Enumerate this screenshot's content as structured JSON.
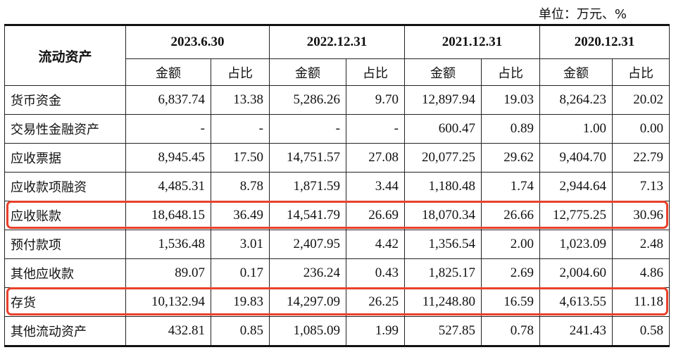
{
  "unit_label": "单位：万元、%",
  "header": {
    "corner": "流动资产",
    "periods": [
      "2023.6.30",
      "2022.12.31",
      "2021.12.31",
      "2020.12.31"
    ],
    "sub_amount": "金额",
    "sub_ratio": "占比"
  },
  "rows": [
    {
      "label": "货币资金",
      "cells": [
        "6,837.74",
        "13.38",
        "5,286.26",
        "9.70",
        "12,897.94",
        "19.03",
        "8,264.23",
        "20.02"
      ]
    },
    {
      "label": "交易性金融资产",
      "cells": [
        "-",
        "-",
        "-",
        "-",
        "600.47",
        "0.89",
        "1.00",
        "0.00"
      ]
    },
    {
      "label": "应收票据",
      "cells": [
        "8,945.45",
        "17.50",
        "14,751.57",
        "27.08",
        "20,077.25",
        "29.62",
        "9,404.70",
        "22.79"
      ]
    },
    {
      "label": "应收款项融资",
      "cells": [
        "4,485.31",
        "8.78",
        "1,871.59",
        "3.44",
        "1,180.48",
        "1.74",
        "2,944.64",
        "7.13"
      ]
    },
    {
      "label": "应收账款",
      "cells": [
        "18,648.15",
        "36.49",
        "14,541.79",
        "26.69",
        "18,070.34",
        "26.66",
        "12,775.25",
        "30.96"
      ]
    },
    {
      "label": "预付款项",
      "cells": [
        "1,536.48",
        "3.01",
        "2,407.95",
        "4.42",
        "1,356.54",
        "2.00",
        "1,023.09",
        "2.48"
      ]
    },
    {
      "label": "其他应收款",
      "cells": [
        "89.07",
        "0.17",
        "236.24",
        "0.43",
        "1,825.17",
        "2.69",
        "2,004.60",
        "4.86"
      ]
    },
    {
      "label": "存货",
      "cells": [
        "10,132.94",
        "19.83",
        "14,297.09",
        "26.25",
        "11,248.80",
        "16.59",
        "4,613.55",
        "11.18"
      ]
    },
    {
      "label": "其他流动资产",
      "cells": [
        "432.81",
        "0.85",
        "1,085.09",
        "1.99",
        "527.85",
        "0.78",
        "241.43",
        "0.58"
      ]
    }
  ],
  "highlight_color": "#e8412a",
  "highlighted_rows": [
    "应收账款",
    "存货"
  ]
}
